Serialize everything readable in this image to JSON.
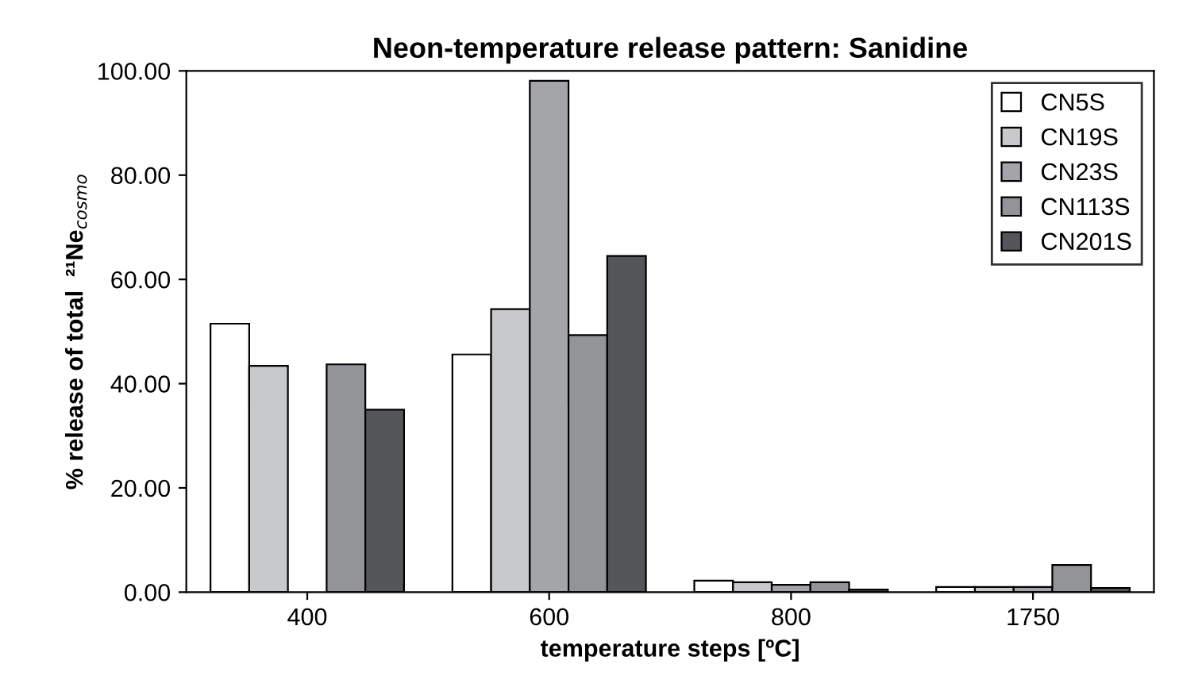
{
  "chart_data": {
    "type": "bar",
    "title": "Neon-temperature release pattern: Sanidine",
    "xlabel": "temperature steps [ºC]",
    "ylabel": "% release of total  ²¹Ne$_{cosmo}$",
    "categories": [
      "400",
      "600",
      "800",
      "1750"
    ],
    "series": [
      {
        "name": "CN5S",
        "color": "#ffffff",
        "values": [
          51.5,
          45.6,
          2.2,
          1.0
        ]
      },
      {
        "name": "CN19S",
        "color": "#c8c9cb",
        "values": [
          43.4,
          54.3,
          1.9,
          1.0
        ]
      },
      {
        "name": "CN23S",
        "color": "#a4a5a9",
        "values": [
          null,
          98.1,
          1.4,
          1.0
        ]
      },
      {
        "name": "CN113S",
        "color": "#939498",
        "values": [
          43.7,
          49.3,
          1.9,
          5.2
        ]
      },
      {
        "name": "CN201S",
        "color": "#55565a",
        "values": [
          35.0,
          64.5,
          0.5,
          0.8
        ]
      }
    ],
    "ylim": [
      0,
      100
    ],
    "yticks": [
      {
        "value": 0,
        "label": "0.00"
      },
      {
        "value": 20,
        "label": "20.00"
      },
      {
        "value": 40,
        "label": "40.00"
      },
      {
        "value": 60,
        "label": "60.00"
      },
      {
        "value": 80,
        "label": "80.00"
      },
      {
        "value": 100,
        "label": "100.00"
      }
    ],
    "grid": false,
    "legend": "top right"
  }
}
